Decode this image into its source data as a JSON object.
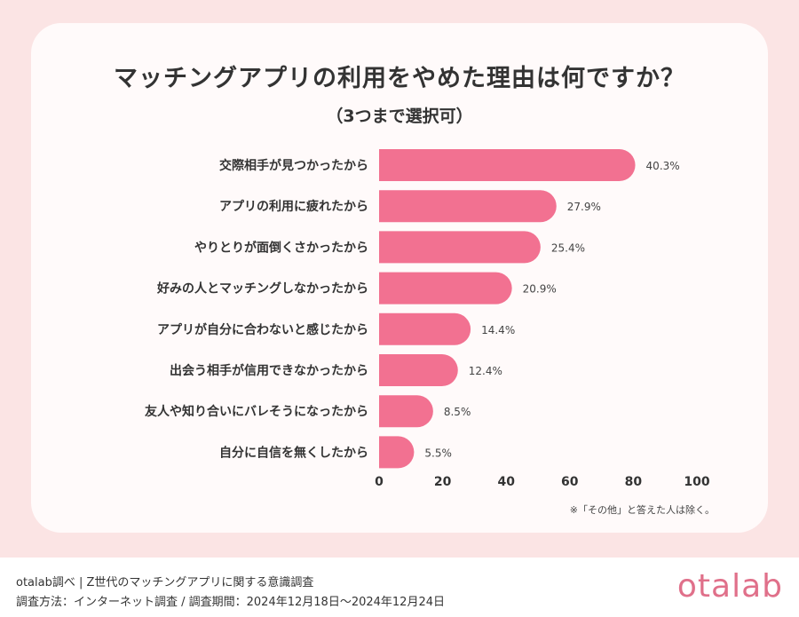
{
  "colors": {
    "bar": "#f27191",
    "background": "#fbe4e4",
    "card": "#fffafa",
    "logo": "#e0708a"
  },
  "chart_data": {
    "type": "bar",
    "orientation": "horizontal",
    "title": "マッチングアプリの利用をやめた理由は何ですか？",
    "subtitle": "（3つまで選択可）",
    "categories": [
      "交際相手が見つかったから",
      "アプリの利用に疲れたから",
      "やりとりが面倒くさかったから",
      "好みの人とマッチングしなかったから",
      "アプリが自分に合わないと感じたから",
      "出会う相手が信用できなかったから",
      "友人や知り合いにバレそうになったから",
      "自分に自信を無くしたから"
    ],
    "values": [
      40.3,
      27.9,
      25.4,
      20.9,
      14.4,
      12.4,
      8.5,
      5.5
    ],
    "value_labels": [
      "40.3%",
      "27.9%",
      "25.4%",
      "20.9%",
      "14.4%",
      "12.4%",
      "8.5%",
      "5.5%"
    ],
    "xticks": [
      "0",
      "20",
      "40",
      "60",
      "80",
      "100"
    ],
    "xlim": [
      0,
      100
    ],
    "grid": false,
    "note": "※「その他」と答えた人は除く。"
  },
  "footer": {
    "line1": "otalab調べ | Z世代のマッチングアプリに関する意識調査",
    "line2": "調査方法：インターネット調査 / 調査期間：2024年12月18日〜2024年12月24日",
    "logo": "otalab"
  }
}
